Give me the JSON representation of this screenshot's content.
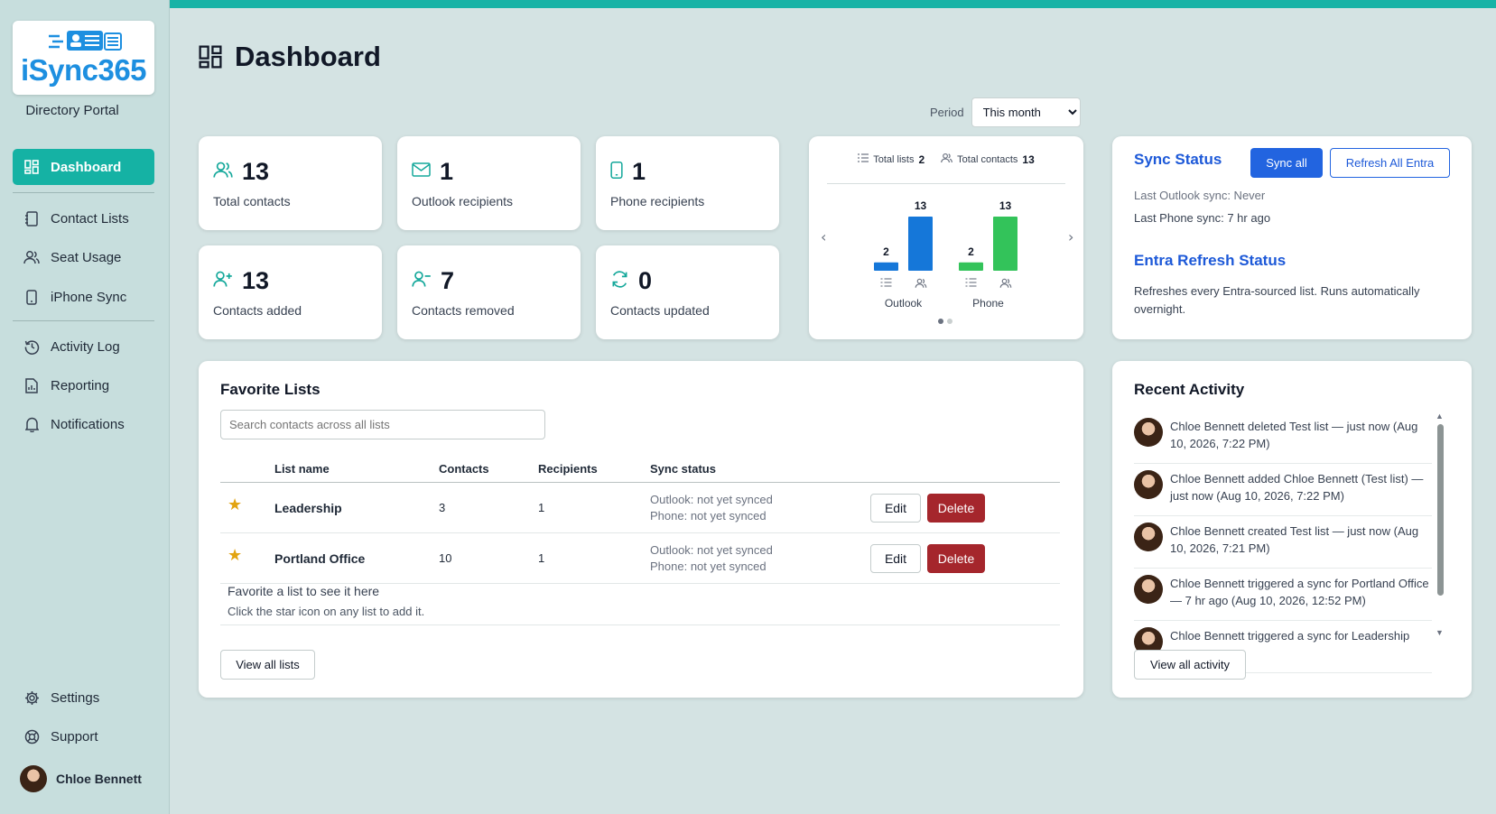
{
  "brand": {
    "name": "iSync365",
    "portal": "Directory Portal",
    "color": "#1d8fe0"
  },
  "sidebar": {
    "items": [
      {
        "label": "Dashboard",
        "icon": "dashboard-icon",
        "active": true
      },
      {
        "label": "Contact Lists",
        "icon": "contact-book-icon"
      },
      {
        "label": "Seat Usage",
        "icon": "users-icon"
      },
      {
        "label": "iPhone Sync",
        "icon": "phone-icon"
      },
      {
        "label": "Activity Log",
        "icon": "history-icon"
      },
      {
        "label": "Reporting",
        "icon": "report-icon"
      },
      {
        "label": "Notifications",
        "icon": "bell-icon"
      },
      {
        "label": "Settings",
        "icon": "gear-icon"
      },
      {
        "label": "Support",
        "icon": "lifebuoy-icon"
      }
    ],
    "user": "Chloe Bennett"
  },
  "header": {
    "title": "Dashboard",
    "period_label": "Period",
    "period_value": "This month"
  },
  "stats": [
    {
      "value": "13",
      "label": "Total contacts",
      "icon": "users-icon"
    },
    {
      "value": "1",
      "label": "Outlook recipients",
      "icon": "mail-icon"
    },
    {
      "value": "1",
      "label": "Phone recipients",
      "icon": "phone-icon"
    },
    {
      "value": "13",
      "label": "Contacts added",
      "icon": "user-plus-icon"
    },
    {
      "value": "7",
      "label": "Contacts removed",
      "icon": "user-minus-icon"
    },
    {
      "value": "0",
      "label": "Contacts updated",
      "icon": "refresh-icon"
    }
  ],
  "chart_data": {
    "type": "bar",
    "legend": [
      {
        "label": "Total lists",
        "value": "2",
        "icon": "list-icon"
      },
      {
        "label": "Total contacts",
        "value": "13",
        "icon": "users-icon"
      }
    ],
    "categories": [
      "Outlook",
      "Phone"
    ],
    "series": [
      {
        "name": "Total lists",
        "values": [
          2,
          2
        ]
      },
      {
        "name": "Total contacts",
        "values": [
          13,
          13
        ]
      }
    ],
    "colors": {
      "Outlook": "#1577d9",
      "Phone": "#33c35a"
    },
    "ylim": [
      0,
      13
    ]
  },
  "sync_status": {
    "title": "Sync Status",
    "sync_all": "Sync all",
    "refresh_all": "Refresh All Entra",
    "last_outlook": "Last Outlook sync: Never",
    "last_phone": "Last Phone sync: 7 hr ago",
    "entra_title": "Entra Refresh Status",
    "entra_desc_1": "Refreshes every Entra-sourced list. Runs automatically",
    "entra_desc_2": "overnight."
  },
  "favorites": {
    "title": "Favorite Lists",
    "search_placeholder": "Search contacts across all lists",
    "columns": [
      "List name",
      "Contacts",
      "Recipients",
      "Sync status"
    ],
    "rows": [
      {
        "name": "Leadership",
        "contacts": "3",
        "recipients": "1",
        "outlook": "Outlook: not yet synced",
        "phone": "Phone: not yet synced"
      },
      {
        "name": "Portland Office",
        "contacts": "10",
        "recipients": "1",
        "outlook": "Outlook: not yet synced",
        "phone": "Phone: not yet synced"
      }
    ],
    "edit_label": "Edit",
    "delete_label": "Delete",
    "empty_title": "Favorite a list to see it here",
    "empty_sub": "Click the star icon on any list to add it.",
    "view_all": "View all lists"
  },
  "activity": {
    "title": "Recent Activity",
    "items": [
      "Chloe Bennett deleted Test list — just now (Aug 10, 2026, 7:22 PM)",
      "Chloe Bennett added Chloe Bennett (Test list) — just now (Aug 10, 2026, 7:22 PM)",
      "Chloe Bennett created Test list — just now (Aug 10, 2026, 7:21 PM)",
      "Chloe Bennett triggered a sync for Portland Office — 7 hr ago (Aug 10, 2026, 12:52 PM)",
      "Chloe Bennett triggered a sync for Leadership"
    ],
    "view_all": "View all activity"
  }
}
